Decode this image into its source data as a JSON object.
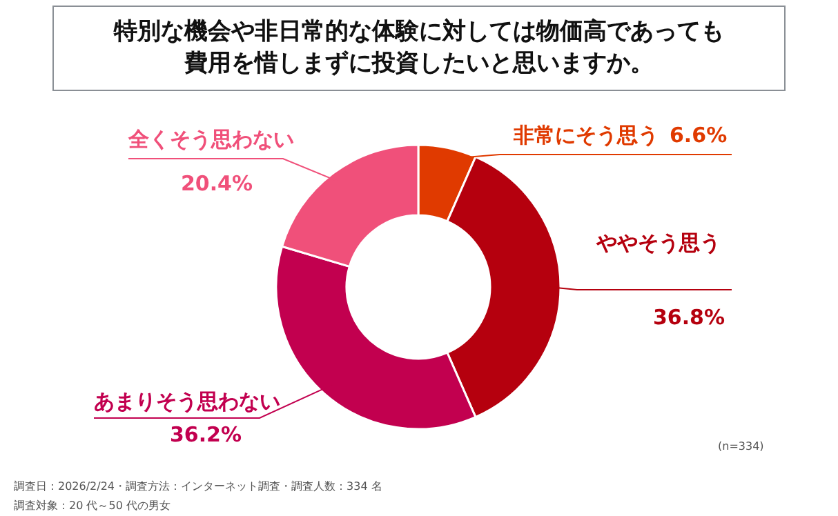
{
  "chart_data": {
    "type": "donut",
    "title": "特別な機会や非日常的な体験に対しては物価高であっても費用を惜しまずに投資したいと思いますか。",
    "categories": [
      "非常にそう思う",
      "ややそう思う",
      "あまりそう思わない",
      "全くそう思わない"
    ],
    "values": [
      6.6,
      36.8,
      36.2,
      20.4
    ],
    "value_labels": [
      "6.6%",
      "36.8%",
      "36.2%",
      "20.4%"
    ],
    "colors": [
      "#e03a00",
      "#b5000e",
      "#c2004f",
      "#f0507a"
    ],
    "annotations": [
      "(n=334)",
      "調査日：2026/2/24・調査方法：インターネット調査・調査人数：334 名",
      "調査対象：20 代～50 代の男女"
    ]
  }
}
